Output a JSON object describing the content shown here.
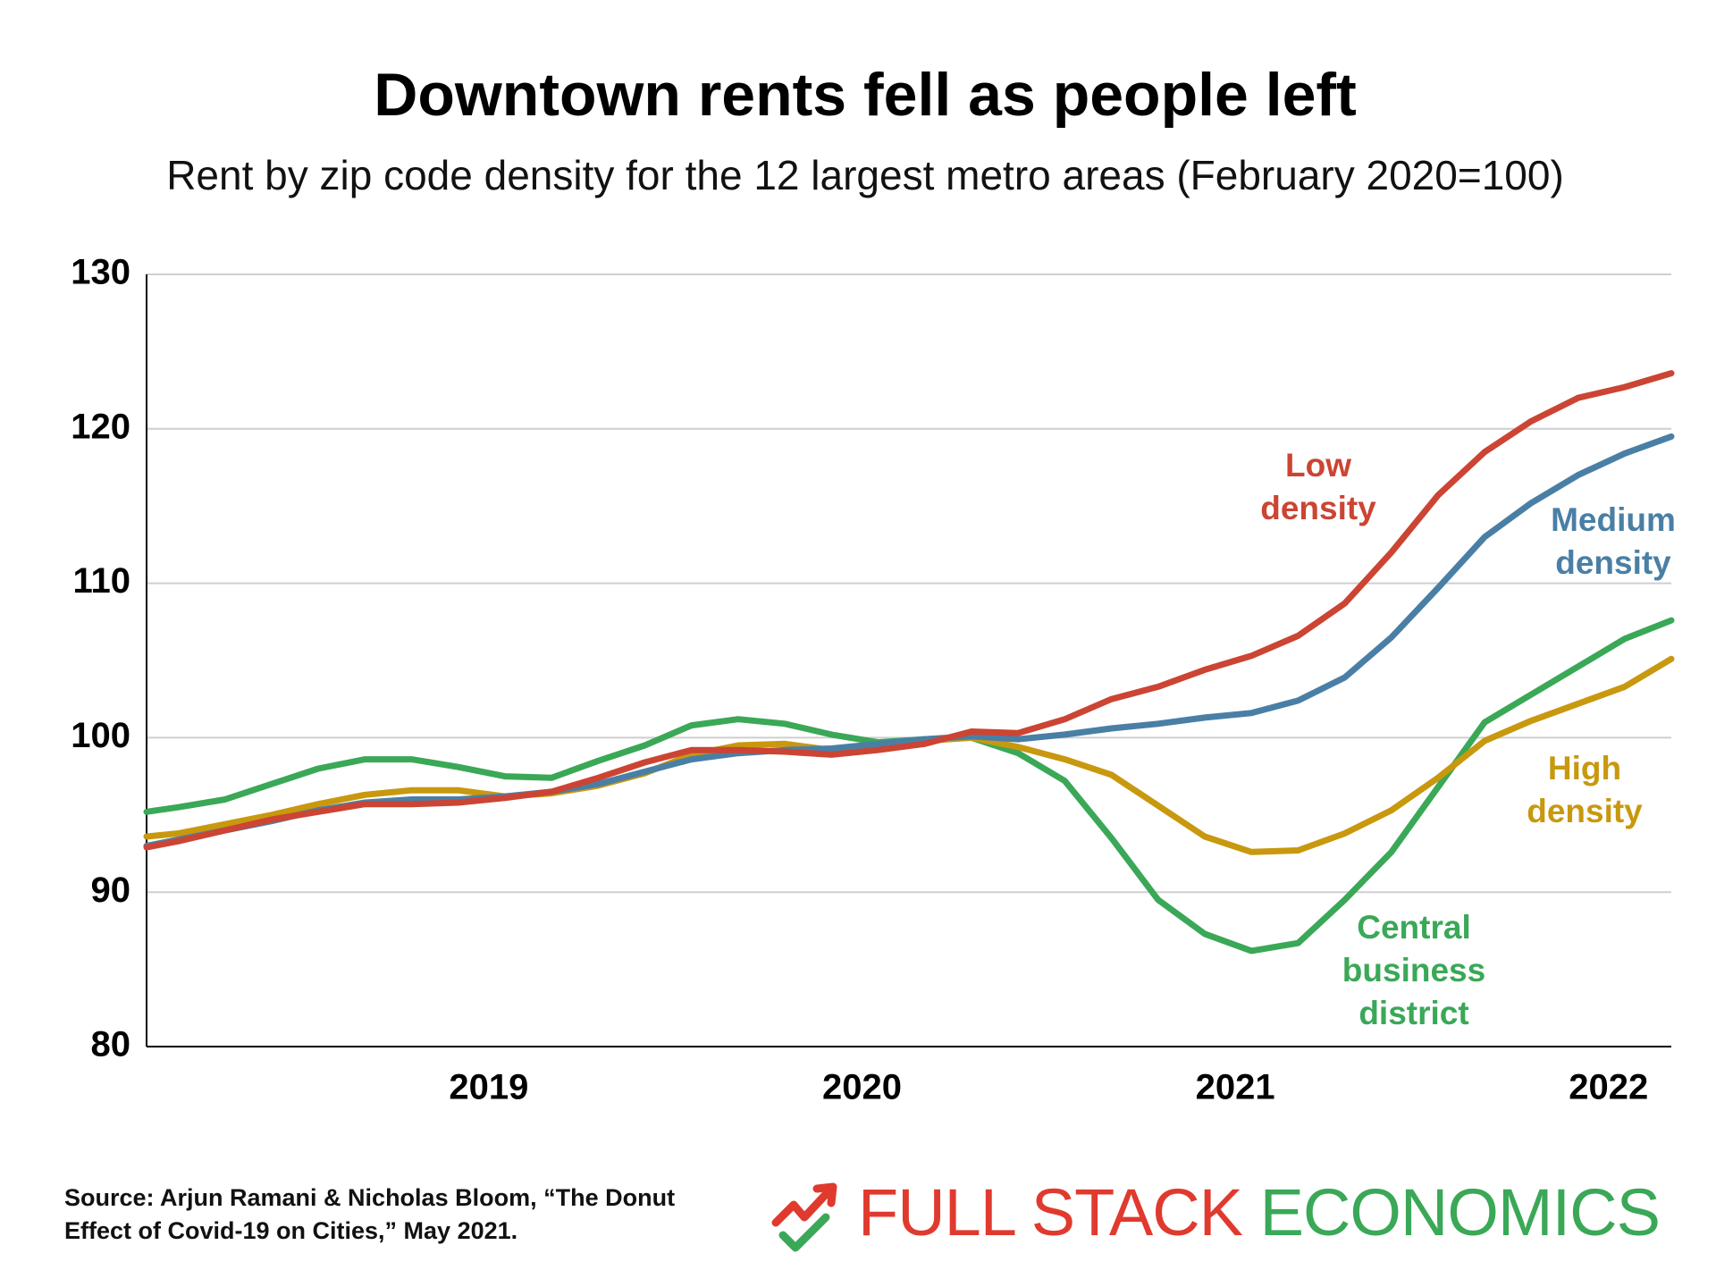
{
  "chart_data": {
    "type": "line",
    "title": "Downtown rents fell as people left",
    "subtitle": "Rent by zip code density for the 12 largest metro areas (February 2020=100)",
    "x": [
      2018.04,
      2018.125,
      2018.25,
      2018.375,
      2018.5,
      2018.625,
      2018.75,
      2018.875,
      2019.0,
      2019.125,
      2019.25,
      2019.375,
      2019.5,
      2019.625,
      2019.75,
      2019.875,
      2020.0,
      2020.125,
      2020.25,
      2020.375,
      2020.5,
      2020.625,
      2020.75,
      2020.875,
      2021.0,
      2021.125,
      2021.25,
      2021.375,
      2021.5,
      2021.625,
      2021.75,
      2021.875,
      2022.0,
      2022.125
    ],
    "series": [
      {
        "name": "Central business district",
        "color": "#3aa857",
        "values": [
          95.2,
          95.5,
          96.0,
          97.0,
          98.0,
          98.6,
          98.6,
          98.1,
          97.5,
          97.4,
          98.5,
          99.5,
          100.8,
          101.2,
          100.9,
          100.2,
          99.7,
          99.9,
          100.0,
          99.0,
          97.2,
          93.5,
          89.5,
          87.3,
          86.2,
          86.7,
          89.5,
          92.6,
          96.8,
          101.0,
          102.8,
          104.6,
          106.4,
          107.6
        ]
      },
      {
        "name": "High density",
        "color": "#c8980e",
        "values": [
          93.6,
          93.8,
          94.4,
          95.0,
          95.7,
          96.3,
          96.6,
          96.6,
          96.2,
          96.4,
          96.9,
          97.7,
          98.9,
          99.5,
          99.6,
          99.2,
          99.4,
          99.8,
          100.0,
          99.4,
          98.6,
          97.6,
          95.6,
          93.6,
          92.6,
          92.7,
          93.8,
          95.3,
          97.4,
          99.8,
          101.1,
          102.2,
          103.3,
          105.1
        ]
      },
      {
        "name": "Medium density",
        "color": "#4a7fa5",
        "values": [
          93.0,
          93.4,
          94.0,
          94.6,
          95.3,
          95.8,
          96.0,
          96.0,
          96.2,
          96.5,
          97.0,
          97.8,
          98.6,
          99.0,
          99.2,
          99.3,
          99.6,
          99.9,
          100.1,
          99.9,
          100.2,
          100.6,
          100.9,
          101.3,
          101.6,
          102.4,
          103.9,
          106.5,
          109.7,
          113.0,
          115.2,
          117.0,
          118.4,
          119.5
        ]
      },
      {
        "name": "Low density",
        "color": "#cc4433",
        "values": [
          92.9,
          93.3,
          94.0,
          94.7,
          95.2,
          95.7,
          95.7,
          95.8,
          96.1,
          96.5,
          97.4,
          98.4,
          99.2,
          99.2,
          99.1,
          98.9,
          99.2,
          99.6,
          100.4,
          100.3,
          101.2,
          102.5,
          103.3,
          104.4,
          105.3,
          106.6,
          108.7,
          112.0,
          115.7,
          118.5,
          120.5,
          122.0,
          122.7,
          123.6
        ]
      }
    ],
    "xlim": [
      2018.04,
      2022.125
    ],
    "xticks": [
      2019,
      2020,
      2021,
      2022
    ],
    "ylim": [
      80,
      130
    ],
    "yticks": [
      80,
      90,
      100,
      110,
      120,
      130
    ],
    "grid": true
  },
  "footer": {
    "source": "Source: Arjun Ramani & Nicholas Bloom, “The Donut Effect of Covid-19 on Cities,” May 2021.",
    "logo": {
      "first": "FULL STACK",
      "second": "ECONOMICS"
    }
  }
}
